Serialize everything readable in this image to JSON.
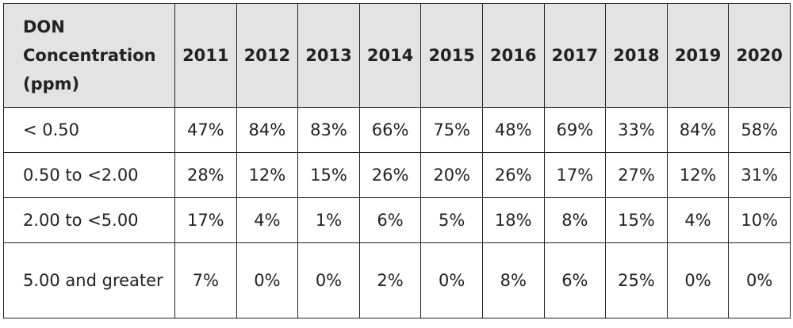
{
  "table": {
    "header_label": "DON Concentration (ppm)",
    "years": [
      "2011",
      "2012",
      "2013",
      "2014",
      "2015",
      "2016",
      "2017",
      "2018",
      "2019",
      "2020"
    ],
    "rows": [
      {
        "label": "< 0.50",
        "values": [
          "47%",
          "84%",
          "83%",
          "66%",
          "75%",
          "48%",
          "69%",
          "33%",
          "84%",
          "58%"
        ]
      },
      {
        "label": "0.50 to <2.00",
        "values": [
          "28%",
          "12%",
          "15%",
          "26%",
          "20%",
          "26%",
          "17%",
          "27%",
          "12%",
          "31%"
        ]
      },
      {
        "label": "2.00 to <5.00",
        "values": [
          "17%",
          "4%",
          "1%",
          "6%",
          "5%",
          "18%",
          "8%",
          "15%",
          "4%",
          "10%"
        ]
      },
      {
        "label": "5.00 and greater",
        "values": [
          "7%",
          "0%",
          "0%",
          "2%",
          "0%",
          "8%",
          "6%",
          "25%",
          "0%",
          "0%"
        ]
      }
    ]
  }
}
